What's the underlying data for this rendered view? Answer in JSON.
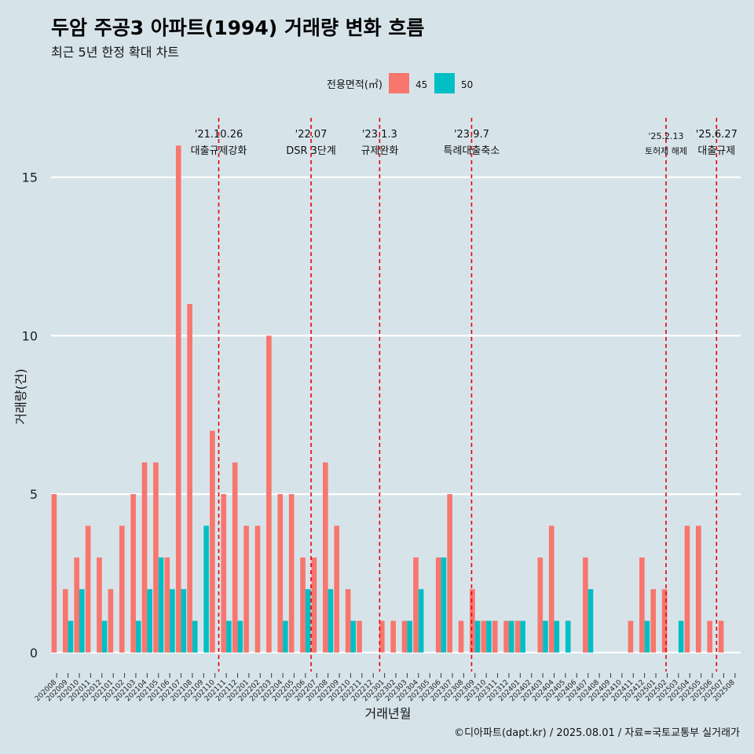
{
  "chart_data": {
    "type": "bar",
    "title": "두암 주공3 아파트(1994) 거래량 변화 흐름",
    "subtitle": "최근 5년 한정 확대 차트",
    "xlabel": "거래년월",
    "ylabel": "거래량(건)",
    "ylim": [
      -0.6,
      17
    ],
    "yticks": [
      0,
      5,
      10,
      15
    ],
    "legend": {
      "title": "전용면적(㎡)",
      "position": "top"
    },
    "categories": [
      "202008",
      "202009",
      "202010",
      "202011",
      "202012",
      "202101",
      "202102",
      "202103",
      "202104",
      "202105",
      "202106",
      "202107",
      "202108",
      "202109",
      "202110",
      "202111",
      "202112",
      "202201",
      "202202",
      "202203",
      "202204",
      "202205",
      "202206",
      "202207",
      "202208",
      "202209",
      "202210",
      "202211",
      "202212",
      "202301",
      "202302",
      "202303",
      "202304",
      "202305",
      "202306",
      "202307",
      "202308",
      "202309",
      "202310",
      "202311",
      "202312",
      "202401",
      "202402",
      "202403",
      "202404",
      "202405",
      "202406",
      "202407",
      "202408",
      "202409",
      "202410",
      "202411",
      "202412",
      "202501",
      "202502",
      "202503",
      "202504",
      "202505",
      "202506",
      "202507",
      "202508"
    ],
    "series": [
      {
        "name": "45",
        "color": "#f8766d",
        "values": [
          5,
          2,
          3,
          4,
          3,
          2,
          4,
          5,
          6,
          6,
          3,
          16,
          11,
          0,
          7,
          5,
          6,
          4,
          4,
          10,
          5,
          5,
          3,
          3,
          6,
          4,
          2,
          1,
          0,
          1,
          1,
          1,
          3,
          0,
          3,
          5,
          1,
          2,
          1,
          1,
          1,
          1,
          0,
          3,
          4,
          0,
          0,
          3,
          0,
          0,
          0,
          1,
          3,
          2,
          2,
          0,
          4,
          4,
          1,
          1,
          0
        ]
      },
      {
        "name": "50",
        "color": "#00bfc4",
        "values": [
          0,
          1,
          2,
          0,
          1,
          0,
          0,
          1,
          2,
          3,
          2,
          2,
          1,
          4,
          0,
          1,
          1,
          0,
          0,
          0,
          1,
          0,
          2,
          0,
          2,
          0,
          1,
          0,
          0,
          0,
          0,
          1,
          2,
          0,
          3,
          0,
          0,
          1,
          1,
          0,
          1,
          1,
          0,
          1,
          1,
          1,
          0,
          2,
          0,
          0,
          0,
          0,
          1,
          0,
          0,
          1,
          0,
          0,
          0,
          0,
          0
        ]
      }
    ],
    "events": [
      {
        "date_line1": "'21.10.26",
        "date_line2": "대출규제강화",
        "x_month": "2021-10-26"
      },
      {
        "date_line1": "'22.07",
        "date_line2": "DSR 3단계",
        "x_month": "2022-07-01"
      },
      {
        "date_line1": "'23.1.3",
        "date_line2": "규제완화",
        "x_month": "2023-01-03"
      },
      {
        "date_line1": "'23.9.7",
        "date_line2": "특례대출축소",
        "x_month": "2023-09-07"
      },
      {
        "date_line1": "'25.2.13",
        "date_line2": "토허제 해제",
        "x_month": "2025-02-13"
      },
      {
        "date_line1": "'25.6.27",
        "date_line2": "대출규제",
        "x_month": "2025-06-27"
      }
    ]
  },
  "footer": "©디아파트(dapt.kr) / 2025.08.01 / 자료=국토교통부 실거래가"
}
